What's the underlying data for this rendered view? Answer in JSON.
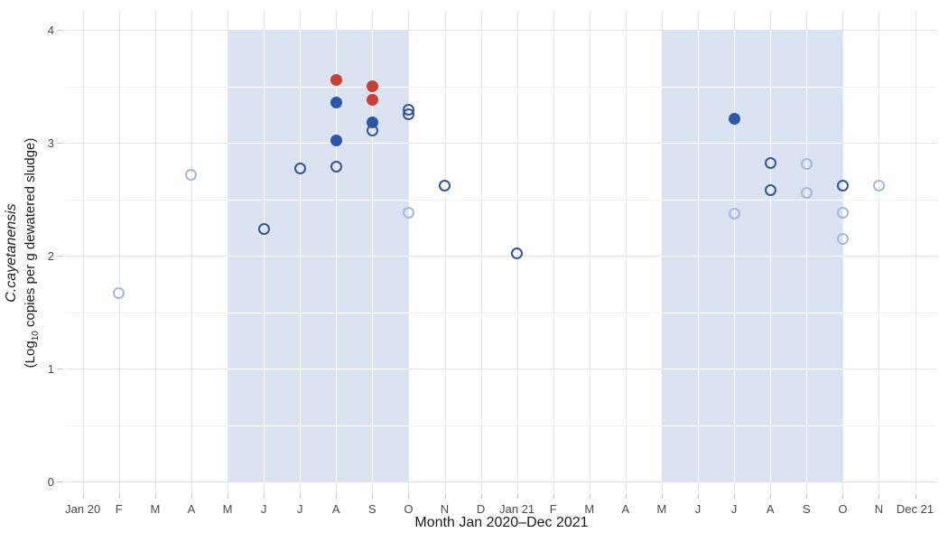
{
  "chart_data": {
    "type": "scatter",
    "title": "",
    "xlabel": "Month Jan 2020–Dec 2021",
    "ylabel": {
      "species": "C.cayetanensis",
      "unit_pre": "(Log",
      "unit_sub": "10",
      "unit_post": " copies per g dewatered sludge)"
    },
    "x_tick_labels": [
      "Jan 20",
      "F",
      "M",
      "A",
      "M",
      "J",
      "J",
      "A",
      "S",
      "O",
      "N",
      "D",
      "Jan 21",
      "F",
      "M",
      "A",
      "M",
      "J",
      "J",
      "A",
      "S",
      "O",
      "N",
      "Dec 21"
    ],
    "y_tick_labels": [
      "0",
      "1",
      "2",
      "3",
      "4"
    ],
    "y_tick_values": [
      0,
      1,
      2,
      3,
      4
    ],
    "y_minor_values": [
      0.5,
      1.5,
      2.5,
      3.5
    ],
    "ylim": [
      0,
      4
    ],
    "months_total": 24,
    "legend_position": "none",
    "grid": {
      "horizontal_major": true,
      "horizontal_minor": true,
      "vertical_monthly": true
    },
    "shaded_bands": [
      {
        "name": "May-Oct 2020",
        "start_month_index": 4,
        "end_month_index": 9
      },
      {
        "name": "May-Oct 2021",
        "start_month_index": 16,
        "end_month_index": 21
      }
    ],
    "series": [
      {
        "name": "open-light-blue",
        "marker": "open-circle",
        "color": "#a7b8da",
        "points": [
          {
            "month_index": 1,
            "value": 1.67
          },
          {
            "month_index": 3,
            "value": 2.72
          },
          {
            "month_index": 9,
            "value": 2.38
          },
          {
            "month_index": 18,
            "value": 2.37
          },
          {
            "month_index": 20,
            "value": 2.81
          },
          {
            "month_index": 20,
            "value": 2.56
          },
          {
            "month_index": 21,
            "value": 2.38
          },
          {
            "month_index": 21,
            "value": 2.15
          },
          {
            "month_index": 22,
            "value": 2.62
          }
        ]
      },
      {
        "name": "open-dark-blue",
        "marker": "open-circle",
        "color": "#35568e",
        "points": [
          {
            "month_index": 5,
            "value": 2.24
          },
          {
            "month_index": 6,
            "value": 2.77
          },
          {
            "month_index": 7,
            "value": 2.79
          },
          {
            "month_index": 8,
            "value": 3.11
          },
          {
            "month_index": 9,
            "value": 3.29
          },
          {
            "month_index": 9,
            "value": 3.25
          },
          {
            "month_index": 10,
            "value": 2.62
          },
          {
            "month_index": 12,
            "value": 2.02
          },
          {
            "month_index": 19,
            "value": 2.82
          },
          {
            "month_index": 19,
            "value": 2.58
          },
          {
            "month_index": 21,
            "value": 2.62
          }
        ]
      },
      {
        "name": "filled-blue",
        "marker": "filled-circle",
        "color": "#2b57a5",
        "points": [
          {
            "month_index": 7,
            "value": 3.36
          },
          {
            "month_index": 7,
            "value": 3.02
          },
          {
            "month_index": 8,
            "value": 3.18
          },
          {
            "month_index": 18,
            "value": 3.21
          }
        ]
      },
      {
        "name": "filled-red",
        "marker": "filled-circle",
        "color": "#c5423a",
        "points": [
          {
            "month_index": 7,
            "value": 3.56
          },
          {
            "month_index": 8,
            "value": 3.5
          },
          {
            "month_index": 8,
            "value": 3.38
          }
        ]
      }
    ],
    "colors": {
      "band": "#dbe2f2",
      "band_gridline": "#ffffff",
      "grid_major": "#e3e3e3",
      "grid_minor": "#f1f1f1",
      "tick": "#c4c4c4",
      "tick_label": "#4a4a4a",
      "axis_title": "#1a1a1a",
      "background": "#ffffff"
    }
  }
}
